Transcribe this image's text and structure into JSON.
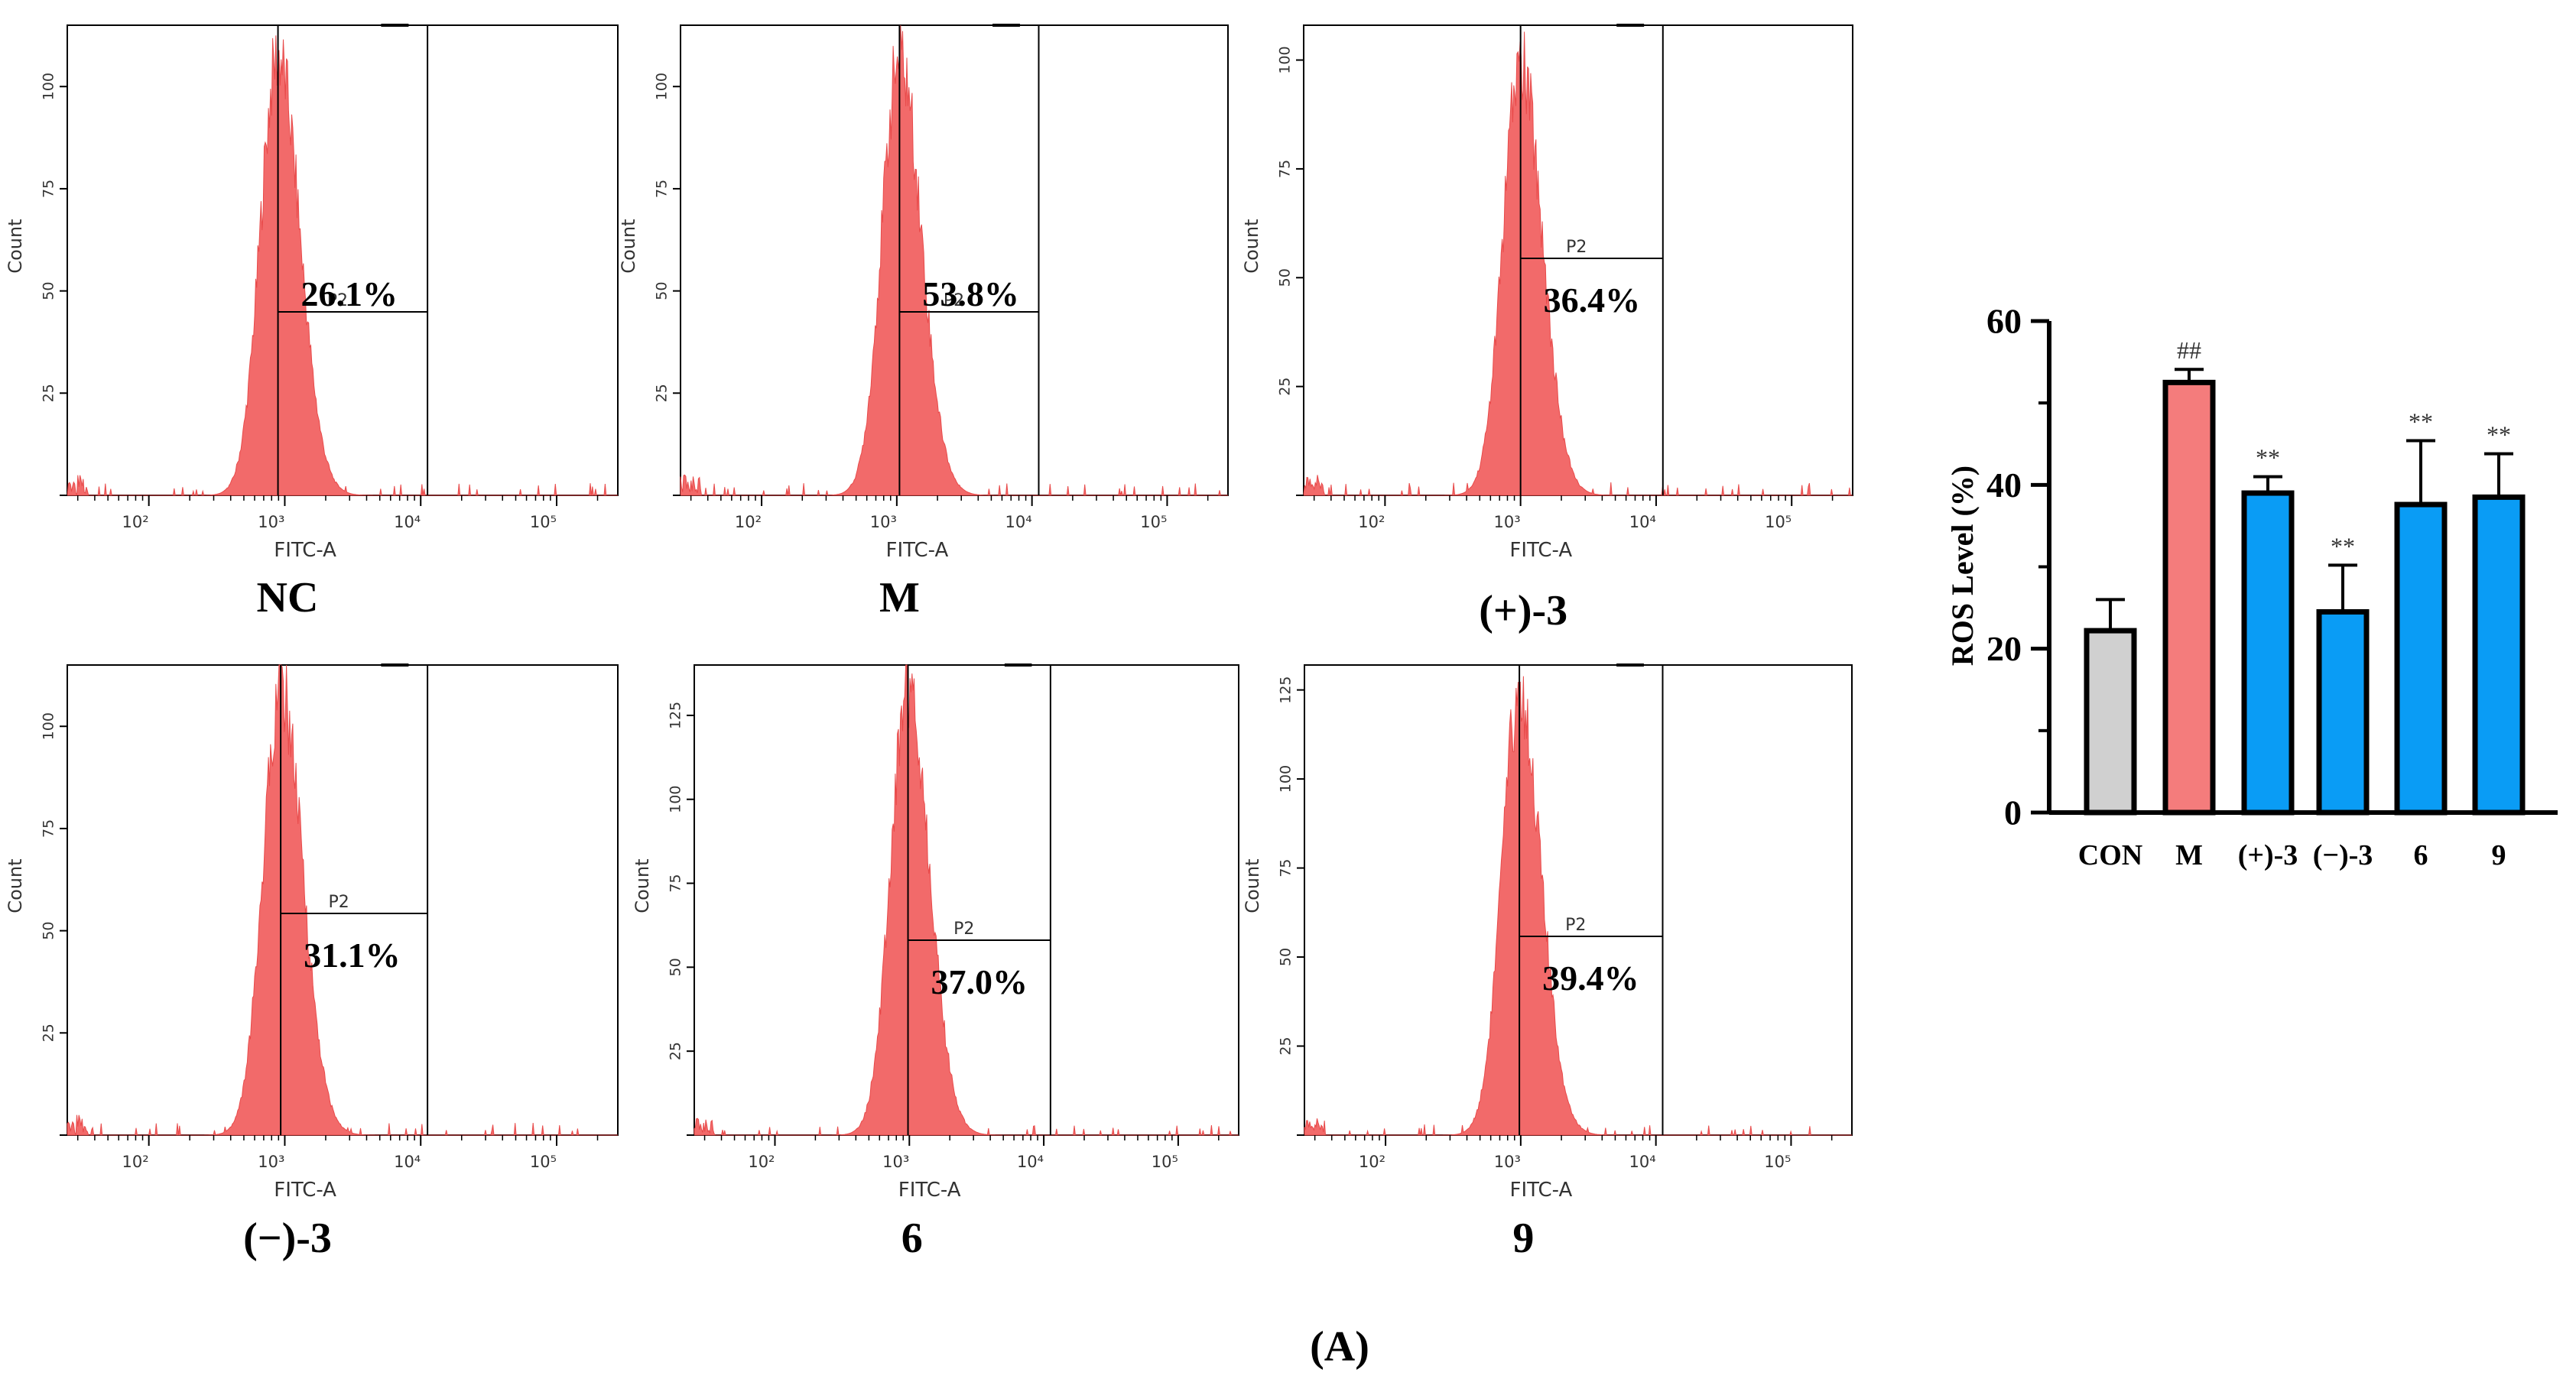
{
  "figure_label": "(A)",
  "colors": {
    "histogram": "#f26a6a",
    "histogram_edge": "#e84a4a",
    "bar_gray": "#d0d0d0",
    "bar_salmon": "#f47c7c",
    "bar_blue": "#0a9cf5",
    "axis": "#000000"
  },
  "chart_data": [
    {
      "type": "histogram",
      "title": "NC",
      "gate_label": "P2",
      "gate_percent": "26.1%",
      "xlabel": "FITC-A",
      "ylabel": "Count",
      "y_ticks": [
        "25",
        "50",
        "75",
        "100"
      ],
      "x_ticks": [
        "10²",
        "10³",
        "10⁴",
        "10⁵"
      ],
      "ymax": 115,
      "peak_log": 2.95,
      "peak_count": 113
    },
    {
      "type": "histogram",
      "title": "M",
      "gate_label": "P2",
      "gate_percent": "53.8%",
      "xlabel": "FITC-A",
      "ylabel": "Count",
      "y_ticks": [
        "25",
        "50",
        "75",
        "100"
      ],
      "x_ticks": [
        "10²",
        "10³",
        "10⁴",
        "10⁵"
      ],
      "ymax": 115,
      "peak_log": 3.02,
      "peak_count": 113
    },
    {
      "type": "histogram",
      "title": "(+)-3",
      "gate_label": "P2",
      "gate_percent": "36.4%",
      "xlabel": "FITC-A",
      "ylabel": "Count",
      "y_ticks": [
        "25",
        "50",
        "75",
        "100"
      ],
      "x_ticks": [
        "10²",
        "10³",
        "10⁴",
        "10⁵"
      ],
      "ymax": 108,
      "peak_log": 3.0,
      "peak_count": 104
    },
    {
      "type": "histogram",
      "title": "(−)-3",
      "gate_label": "P2",
      "gate_percent": "31.1%",
      "xlabel": "FITC-A",
      "ylabel": "Count",
      "y_ticks": [
        "25",
        "50",
        "75",
        "100"
      ],
      "x_ticks": [
        "10²",
        "10³",
        "10⁴",
        "10⁵"
      ],
      "ymax": 115,
      "peak_log": 2.97,
      "peak_count": 115
    },
    {
      "type": "histogram",
      "title": "6",
      "gate_label": "P2",
      "gate_percent": "37.0%",
      "xlabel": "FITC-A",
      "ylabel": "Count",
      "y_ticks": [
        "25",
        "50",
        "75",
        "100",
        "125"
      ],
      "x_ticks": [
        "10²",
        "10³",
        "10⁴",
        "10⁵"
      ],
      "ymax": 140,
      "peak_log": 2.99,
      "peak_count": 140
    },
    {
      "type": "histogram",
      "title": "9",
      "gate_label": "P2",
      "gate_percent": "39.4%",
      "xlabel": "FITC-A",
      "ylabel": "Count",
      "y_ticks": [
        "25",
        "50",
        "75",
        "100",
        "125"
      ],
      "x_ticks": [
        "10²",
        "10³",
        "10⁴",
        "10⁵"
      ],
      "ymax": 132,
      "peak_log": 2.99,
      "peak_count": 130
    },
    {
      "type": "bar",
      "title": "",
      "ylabel": "ROS Level (%)",
      "categories": [
        "CON",
        "M",
        "(+)-3",
        "(−)-3",
        "6",
        "9"
      ],
      "values": [
        22.2,
        52.5,
        39.0,
        24.5,
        37.6,
        38.5
      ],
      "errors": [
        3.8,
        1.6,
        2.0,
        5.7,
        7.8,
        5.3
      ],
      "annotations": [
        "",
        "##",
        "**",
        "**",
        "**",
        "**"
      ],
      "y_ticks": [
        "0",
        "20",
        "40",
        "60"
      ],
      "ylim": [
        0,
        60
      ]
    }
  ]
}
